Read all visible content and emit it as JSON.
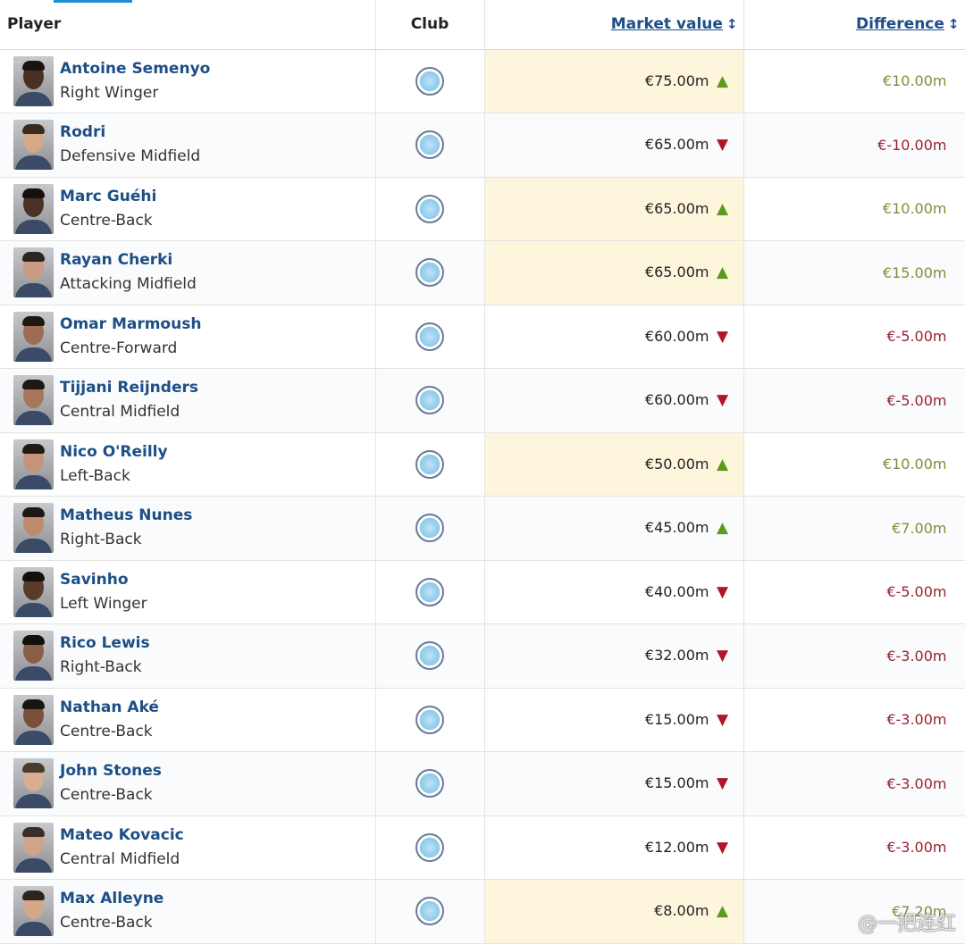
{
  "headers": {
    "player": "Player",
    "club": "Club",
    "market_value": "Market value",
    "difference": "Difference"
  },
  "rows": [
    {
      "name": "Antoine Semenyo",
      "position": "Right Winger",
      "market_value": "€75.00m",
      "trend": "up",
      "difference": "€10.00m",
      "highlight": true,
      "skin": "#4a3024",
      "hair": "#1a1410"
    },
    {
      "name": "Rodri",
      "position": "Defensive Midfield",
      "market_value": "€65.00m",
      "trend": "down",
      "difference": "€-10.00m",
      "highlight": false,
      "skin": "#d6a889",
      "hair": "#3a2a1e"
    },
    {
      "name": "Marc Guéhi",
      "position": "Centre-Back",
      "market_value": "€65.00m",
      "trend": "up",
      "difference": "€10.00m",
      "highlight": true,
      "skin": "#4b3226",
      "hair": "#15110e"
    },
    {
      "name": "Rayan Cherki",
      "position": "Attacking Midfield",
      "market_value": "€65.00m",
      "trend": "up",
      "difference": "€15.00m",
      "highlight": true,
      "skin": "#c99b82",
      "hair": "#2b2420"
    },
    {
      "name": "Omar Marmoush",
      "position": "Centre-Forward",
      "market_value": "€60.00m",
      "trend": "down",
      "difference": "€-5.00m",
      "highlight": false,
      "skin": "#9c6d52",
      "hair": "#1e1712"
    },
    {
      "name": "Tijjani Reijnders",
      "position": "Central Midfield",
      "market_value": "€60.00m",
      "trend": "down",
      "difference": "€-5.00m",
      "highlight": false,
      "skin": "#a87658",
      "hair": "#1e1712"
    },
    {
      "name": "Nico O'Reilly",
      "position": "Left-Back",
      "market_value": "€50.00m",
      "trend": "up",
      "difference": "€10.00m",
      "highlight": true,
      "skin": "#c59377",
      "hair": "#241a14"
    },
    {
      "name": "Matheus Nunes",
      "position": "Right-Back",
      "market_value": "€45.00m",
      "trend": "up",
      "difference": "€7.00m",
      "highlight": false,
      "skin": "#c08a6c",
      "hair": "#1e1712"
    },
    {
      "name": "Savinho",
      "position": "Left Winger",
      "market_value": "€40.00m",
      "trend": "down",
      "difference": "€-5.00m",
      "highlight": false,
      "skin": "#5c3a29",
      "hair": "#14100c"
    },
    {
      "name": "Rico Lewis",
      "position": "Right-Back",
      "market_value": "€32.00m",
      "trend": "down",
      "difference": "€-3.00m",
      "highlight": false,
      "skin": "#8a5e45",
      "hair": "#14100c"
    },
    {
      "name": "Nathan Aké",
      "position": "Centre-Back",
      "market_value": "€15.00m",
      "trend": "down",
      "difference": "€-3.00m",
      "highlight": false,
      "skin": "#7a5039",
      "hair": "#1a1410"
    },
    {
      "name": "John Stones",
      "position": "Centre-Back",
      "market_value": "€15.00m",
      "trend": "down",
      "difference": "€-3.00m",
      "highlight": false,
      "skin": "#d8ad92",
      "hair": "#4a3a2e"
    },
    {
      "name": "Mateo Kovacic",
      "position": "Central Midfield",
      "market_value": "€12.00m",
      "trend": "down",
      "difference": "€-3.00m",
      "highlight": false,
      "skin": "#d0a488",
      "hair": "#3a2e26"
    },
    {
      "name": "Max Alleyne",
      "position": "Centre-Back",
      "market_value": "€8.00m",
      "trend": "up",
      "difference": "€7.20m",
      "highlight": true,
      "skin": "#d4a78b",
      "hair": "#2e241c"
    }
  ],
  "icons": {
    "up": "▲",
    "down": "▼",
    "sort": "↕"
  },
  "colors": {
    "link": "#1d4e85",
    "up": "#5a9a1f",
    "down": "#b01628",
    "highlight": "#fdf6dc"
  },
  "watermark": "@一把连红"
}
